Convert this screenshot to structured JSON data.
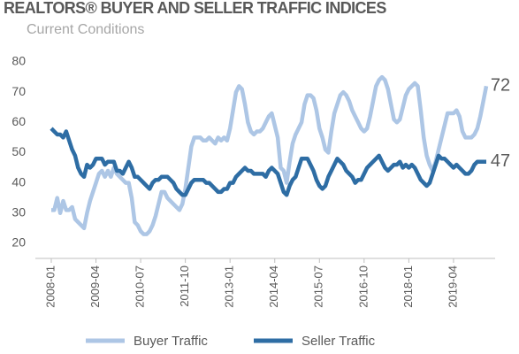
{
  "chart_data": {
    "type": "line",
    "title": "REALTORS® BUYER AND SELLER TRAFFIC INDICES",
    "subtitle": "Current Conditions",
    "categories": [
      "2008-01",
      null,
      null,
      null,
      null,
      null,
      null,
      null,
      null,
      null,
      null,
      null,
      null,
      null,
      null,
      "2009-04",
      null,
      null,
      null,
      null,
      null,
      null,
      null,
      null,
      null,
      null,
      null,
      null,
      null,
      null,
      "2010-07",
      null,
      null,
      null,
      null,
      null,
      null,
      null,
      null,
      null,
      null,
      null,
      null,
      null,
      null,
      "2011-10",
      null,
      null,
      null,
      null,
      null,
      null,
      null,
      null,
      null,
      null,
      null,
      null,
      null,
      null,
      "2013-01",
      null,
      null,
      null,
      null,
      null,
      null,
      null,
      null,
      null,
      null,
      null,
      null,
      null,
      null,
      "2014-04",
      null,
      null,
      null,
      null,
      null,
      null,
      null,
      null,
      null,
      null,
      null,
      null,
      null,
      null,
      "2015-07",
      null,
      null,
      null,
      null,
      null,
      null,
      null,
      null,
      null,
      null,
      null,
      null,
      null,
      null,
      "2016-10",
      null,
      null,
      null,
      null,
      null,
      null,
      null,
      null,
      null,
      null,
      null,
      null,
      null,
      null,
      "2018-01",
      null,
      null,
      null,
      null,
      null,
      null,
      null,
      null,
      null,
      null,
      null,
      null,
      null,
      null,
      "2019-04",
      null,
      null,
      null,
      null,
      null,
      null,
      null,
      null,
      null,
      null,
      null
    ],
    "series": [
      {
        "name": "Buyer Traffic",
        "color": "#adc6e5",
        "values": [
          31,
          31,
          35,
          30,
          34,
          31,
          31,
          32,
          28,
          27,
          26,
          25,
          30,
          34,
          37,
          40,
          43,
          44,
          42,
          44,
          42,
          45,
          43,
          42,
          41,
          40,
          40,
          35,
          27,
          26,
          24,
          23,
          23,
          24,
          26,
          29,
          33,
          37,
          37,
          35,
          34,
          33,
          32,
          31,
          33,
          38,
          45,
          52,
          55,
          55,
          55,
          54,
          54,
          55,
          54,
          53,
          55,
          54,
          55,
          54,
          58,
          64,
          70,
          72,
          71,
          66,
          60,
          57,
          56,
          57,
          57,
          58,
          60,
          62,
          63,
          59,
          55,
          45,
          44,
          40,
          47,
          53,
          56,
          58,
          60,
          66,
          69,
          69,
          68,
          64,
          58,
          55,
          51,
          50,
          57,
          63,
          66,
          69,
          70,
          69,
          67,
          64,
          62,
          60,
          58,
          57,
          58,
          62,
          67,
          72,
          74,
          75,
          74,
          71,
          66,
          61,
          60,
          61,
          65,
          69,
          71,
          72,
          73,
          72,
          64,
          55,
          49,
          46,
          44,
          47,
          51,
          55,
          59,
          63,
          63,
          63,
          64,
          62,
          57,
          55,
          55,
          55,
          56,
          58,
          62,
          67,
          72
        ]
      },
      {
        "name": "Seller Traffic",
        "color": "#2e6da4",
        "values": [
          58,
          57,
          56,
          56,
          55,
          57,
          54,
          51,
          49,
          45,
          43,
          42,
          46,
          45,
          46,
          48,
          48,
          48,
          46,
          47,
          47,
          47,
          44,
          44,
          43,
          45,
          47,
          45,
          42,
          42,
          41,
          40,
          39,
          38,
          40,
          41,
          41,
          42,
          42,
          42,
          41,
          40,
          38,
          37,
          36,
          36,
          38,
          40,
          41,
          41,
          41,
          41,
          40,
          40,
          39,
          38,
          37,
          37,
          38,
          38,
          40,
          40,
          42,
          43,
          44,
          45,
          44,
          44,
          43,
          43,
          43,
          43,
          42,
          44,
          45,
          44,
          43,
          40,
          37,
          36,
          39,
          41,
          42,
          45,
          48,
          48,
          48,
          46,
          44,
          41,
          39,
          38,
          39,
          42,
          44,
          46,
          48,
          47,
          46,
          44,
          43,
          42,
          40,
          41,
          41,
          43,
          45,
          46,
          47,
          48,
          49,
          47,
          45,
          44,
          45,
          46,
          46,
          47,
          45,
          46,
          45,
          46,
          45,
          43,
          41,
          40,
          39,
          40,
          43,
          46,
          49,
          48,
          48,
          47,
          46,
          45,
          46,
          45,
          44,
          43,
          43,
          44,
          46,
          47,
          47,
          47,
          47
        ]
      }
    ],
    "ylim": [
      15,
      80
    ],
    "yticks": [
      20,
      30,
      40,
      50,
      60,
      70,
      80
    ]
  }
}
